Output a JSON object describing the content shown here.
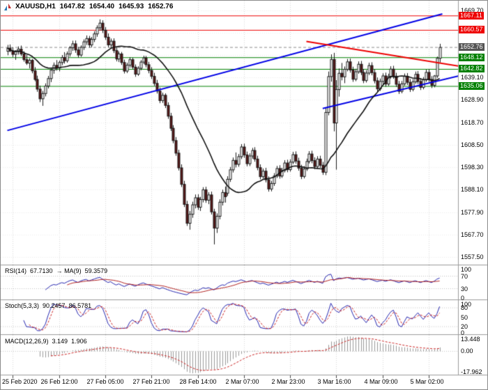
{
  "header": {
    "symbol": "XAUUSD,H1",
    "open": "1647.82",
    "high": "1654.40",
    "low": "1645.93",
    "close": "1652.76"
  },
  "panels": {
    "rsi": {
      "name": "RSI(14)",
      "value": "67.7130",
      "ma_name": "→ MA(9)",
      "ma_value": "59.3579"
    },
    "stoch": {
      "name": "Stoch(5,3,3)",
      "value": "90.2457",
      "signal": "86.5781"
    },
    "macd": {
      "name": "MACD(12,26,9)",
      "value": "3.149",
      "signal": "1.906"
    }
  },
  "colors": {
    "bull": "#ffffff",
    "bear": "#5a1616",
    "outline": "#1a1a1a",
    "ma": "#101010",
    "trend_blue": "#0000e6",
    "trend_red": "#ee0000",
    "level_red": "#ee0000",
    "level_green": "#008000",
    "bid_label": "#555555",
    "rsi": "#2626b0",
    "rsi_ma": "#b22222",
    "stoch_k": "#2626b0",
    "stoch_d": "#cc2222",
    "macd_hist": "#999999",
    "macd_signal": "#cc2222",
    "grid": "#d9d9d9"
  },
  "chart_data": {
    "type": "candlestick",
    "symbol": "XAUUSD",
    "timeframe": "H1",
    "ylim": [
      1554,
      1674
    ],
    "candles": [
      [
        1651.0,
        1653.9,
        1649.2,
        1652.4
      ],
      [
        1652.4,
        1654.1,
        1650.6,
        1651.2
      ],
      [
        1651.2,
        1652.8,
        1648.4,
        1649.6
      ],
      [
        1649.6,
        1651.5,
        1647.1,
        1650.8
      ],
      [
        1650.8,
        1653.2,
        1649.5,
        1652.0
      ],
      [
        1652.0,
        1653.6,
        1648.9,
        1649.8
      ],
      [
        1649.8,
        1651.0,
        1646.3,
        1647.2
      ],
      [
        1647.2,
        1649.4,
        1644.8,
        1645.6
      ],
      [
        1645.6,
        1647.8,
        1643.2,
        1646.9
      ],
      [
        1646.9,
        1647.5,
        1641.0,
        1642.1
      ],
      [
        1642.1,
        1643.8,
        1637.4,
        1638.2
      ],
      [
        1638.2,
        1639.9,
        1632.6,
        1633.8
      ],
      [
        1633.8,
        1635.4,
        1627.9,
        1629.4
      ],
      [
        1629.4,
        1633.0,
        1626.2,
        1631.8
      ],
      [
        1631.8,
        1636.4,
        1630.5,
        1635.2
      ],
      [
        1635.2,
        1639.8,
        1634.1,
        1638.6
      ],
      [
        1638.6,
        1643.2,
        1637.0,
        1642.4
      ],
      [
        1642.4,
        1645.9,
        1640.8,
        1644.6
      ],
      [
        1644.6,
        1647.0,
        1642.2,
        1643.4
      ],
      [
        1643.4,
        1646.8,
        1641.9,
        1645.9
      ],
      [
        1645.9,
        1649.3,
        1644.7,
        1648.2
      ],
      [
        1648.2,
        1650.6,
        1645.4,
        1646.7
      ],
      [
        1646.7,
        1650.9,
        1645.8,
        1649.8
      ],
      [
        1649.8,
        1653.4,
        1648.6,
        1652.6
      ],
      [
        1652.6,
        1655.8,
        1651.2,
        1654.4
      ],
      [
        1654.4,
        1655.9,
        1650.3,
        1651.6
      ],
      [
        1651.6,
        1653.0,
        1648.1,
        1649.3
      ],
      [
        1649.3,
        1653.7,
        1648.5,
        1652.8
      ],
      [
        1652.8,
        1656.4,
        1651.6,
        1655.3
      ],
      [
        1655.3,
        1658.2,
        1653.9,
        1656.8
      ],
      [
        1656.8,
        1658.0,
        1652.7,
        1653.9
      ],
      [
        1653.9,
        1657.5,
        1652.8,
        1656.4
      ],
      [
        1656.4,
        1660.1,
        1655.2,
        1658.9
      ],
      [
        1658.9,
        1662.8,
        1657.6,
        1661.7
      ],
      [
        1661.7,
        1665.5,
        1660.4,
        1663.8
      ],
      [
        1663.8,
        1665.1,
        1659.3,
        1660.6
      ],
      [
        1660.6,
        1662.0,
        1656.2,
        1657.4
      ],
      [
        1657.4,
        1659.1,
        1652.8,
        1653.9
      ],
      [
        1653.9,
        1656.8,
        1652.1,
        1655.6
      ],
      [
        1655.6,
        1656.9,
        1650.2,
        1651.3
      ],
      [
        1651.3,
        1652.8,
        1646.4,
        1647.5
      ],
      [
        1647.5,
        1650.9,
        1646.1,
        1649.8
      ],
      [
        1649.8,
        1650.7,
        1644.8,
        1645.9
      ],
      [
        1645.9,
        1647.2,
        1640.9,
        1642.0
      ],
      [
        1642.0,
        1645.8,
        1641.1,
        1644.7
      ],
      [
        1644.7,
        1648.3,
        1643.6,
        1647.2
      ],
      [
        1647.2,
        1648.1,
        1642.9,
        1643.8
      ],
      [
        1643.8,
        1645.0,
        1639.4,
        1640.6
      ],
      [
        1640.6,
        1644.2,
        1639.8,
        1643.3
      ],
      [
        1643.3,
        1647.0,
        1642.4,
        1646.1
      ],
      [
        1646.1,
        1649.0,
        1645.2,
        1648.0
      ],
      [
        1648.0,
        1648.9,
        1643.7,
        1644.9
      ],
      [
        1644.9,
        1646.2,
        1641.0,
        1642.3
      ],
      [
        1642.3,
        1643.8,
        1638.4,
        1639.6
      ],
      [
        1639.6,
        1641.2,
        1635.3,
        1636.4
      ],
      [
        1636.4,
        1638.0,
        1631.8,
        1632.9
      ],
      [
        1632.9,
        1634.5,
        1627.4,
        1628.6
      ],
      [
        1628.6,
        1632.2,
        1627.5,
        1631.0
      ],
      [
        1631.0,
        1631.9,
        1625.2,
        1626.4
      ],
      [
        1626.4,
        1627.8,
        1620.3,
        1621.5
      ],
      [
        1621.5,
        1623.0,
        1614.8,
        1616.0
      ],
      [
        1616.0,
        1617.4,
        1609.2,
        1610.4
      ],
      [
        1610.4,
        1612.0,
        1603.5,
        1604.7
      ],
      [
        1604.7,
        1606.2,
        1596.8,
        1598.0
      ],
      [
        1598.0,
        1599.6,
        1589.3,
        1590.5
      ],
      [
        1590.5,
        1592.1,
        1580.2,
        1581.4
      ],
      [
        1581.4,
        1583.0,
        1571.6,
        1572.8
      ],
      [
        1572.8,
        1578.4,
        1569.9,
        1576.9
      ],
      [
        1576.9,
        1582.6,
        1575.3,
        1581.2
      ],
      [
        1581.2,
        1585.9,
        1579.6,
        1584.4
      ],
      [
        1584.4,
        1586.0,
        1578.9,
        1580.1
      ],
      [
        1580.1,
        1584.8,
        1578.4,
        1583.6
      ],
      [
        1583.6,
        1589.2,
        1582.3,
        1588.0
      ],
      [
        1588.0,
        1589.4,
        1582.1,
        1583.3
      ],
      [
        1583.3,
        1586.9,
        1581.5,
        1585.7
      ],
      [
        1585.7,
        1587.2,
        1576.8,
        1578.0
      ],
      [
        1578.0,
        1579.4,
        1563.2,
        1570.6
      ],
      [
        1570.6,
        1577.3,
        1568.4,
        1576.0
      ],
      [
        1576.0,
        1583.7,
        1574.6,
        1582.4
      ],
      [
        1582.4,
        1588.1,
        1580.9,
        1586.8
      ],
      [
        1586.8,
        1589.5,
        1582.2,
        1584.9
      ],
      [
        1586.5,
        1594.2,
        1585.3,
        1592.8
      ],
      [
        1592.8,
        1598.4,
        1591.6,
        1597.1
      ],
      [
        1597.1,
        1602.7,
        1595.9,
        1601.4
      ],
      [
        1601.4,
        1605.0,
        1598.2,
        1599.6
      ],
      [
        1599.6,
        1604.3,
        1598.5,
        1603.1
      ],
      [
        1603.1,
        1608.8,
        1602.0,
        1607.5
      ],
      [
        1607.5,
        1609.0,
        1602.6,
        1603.9
      ],
      [
        1603.9,
        1605.4,
        1598.7,
        1599.9
      ],
      [
        1599.9,
        1604.6,
        1598.8,
        1603.4
      ],
      [
        1603.4,
        1607.1,
        1602.2,
        1605.9
      ],
      [
        1605.9,
        1607.4,
        1600.8,
        1602.0
      ],
      [
        1602.0,
        1603.5,
        1596.9,
        1598.1
      ],
      [
        1598.1,
        1599.6,
        1592.8,
        1594.0
      ],
      [
        1594.0,
        1597.7,
        1593.1,
        1596.5
      ],
      [
        1596.5,
        1598.0,
        1591.4,
        1592.6
      ],
      [
        1592.6,
        1594.1,
        1587.2,
        1588.4
      ],
      [
        1588.4,
        1592.1,
        1587.3,
        1590.9
      ],
      [
        1590.9,
        1595.6,
        1589.8,
        1594.3
      ],
      [
        1594.3,
        1598.9,
        1593.4,
        1597.7
      ],
      [
        1597.7,
        1599.2,
        1593.1,
        1594.3
      ],
      [
        1594.3,
        1598.0,
        1593.4,
        1596.8
      ],
      [
        1596.8,
        1601.5,
        1595.9,
        1600.2
      ],
      [
        1600.2,
        1601.7,
        1596.0,
        1597.2
      ],
      [
        1597.2,
        1601.9,
        1596.3,
        1600.6
      ],
      [
        1600.6,
        1605.3,
        1599.7,
        1604.0
      ],
      [
        1604.0,
        1605.5,
        1599.9,
        1601.1
      ],
      [
        1601.1,
        1602.6,
        1596.7,
        1597.9
      ],
      [
        1597.9,
        1599.4,
        1592.9,
        1594.1
      ],
      [
        1594.1,
        1598.8,
        1593.2,
        1597.5
      ],
      [
        1597.5,
        1602.2,
        1596.6,
        1600.9
      ],
      [
        1600.9,
        1605.6,
        1600.0,
        1604.3
      ],
      [
        1604.3,
        1605.8,
        1600.1,
        1601.3
      ],
      [
        1601.3,
        1602.8,
        1597.4,
        1598.6
      ],
      [
        1598.6,
        1603.3,
        1597.7,
        1602.0
      ],
      [
        1602.0,
        1603.5,
        1598.0,
        1599.2
      ],
      [
        1599.2,
        1600.7,
        1594.8,
        1596.0
      ],
      [
        1596.0,
        1625.4,
        1594.7,
        1623.2
      ],
      [
        1623.2,
        1641.8,
        1621.9,
        1639.5
      ],
      [
        1639.5,
        1649.6,
        1637.2,
        1647.3
      ],
      [
        1647.3,
        1650.3,
        1614.6,
        1618.4
      ],
      [
        1618.4,
        1637.9,
        1597.2,
        1633.6
      ],
      [
        1633.6,
        1643.2,
        1630.4,
        1641.0
      ],
      [
        1641.0,
        1645.7,
        1637.8,
        1639.4
      ],
      [
        1639.4,
        1644.1,
        1636.5,
        1642.8
      ],
      [
        1642.8,
        1647.5,
        1641.9,
        1646.2
      ],
      [
        1646.2,
        1647.7,
        1641.3,
        1642.5
      ],
      [
        1642.5,
        1644.0,
        1637.1,
        1638.3
      ],
      [
        1638.3,
        1643.0,
        1637.4,
        1641.7
      ],
      [
        1641.7,
        1646.4,
        1640.8,
        1645.1
      ],
      [
        1645.1,
        1646.6,
        1640.2,
        1641.4
      ],
      [
        1641.4,
        1642.9,
        1636.5,
        1637.7
      ],
      [
        1637.7,
        1642.4,
        1636.8,
        1641.1
      ],
      [
        1641.1,
        1645.8,
        1640.2,
        1644.5
      ],
      [
        1644.5,
        1646.0,
        1640.1,
        1641.3
      ],
      [
        1641.3,
        1642.8,
        1636.4,
        1637.6
      ],
      [
        1637.6,
        1639.1,
        1632.7,
        1633.9
      ],
      [
        1633.9,
        1638.6,
        1633.0,
        1637.3
      ],
      [
        1637.3,
        1641.0,
        1635.4,
        1639.8
      ],
      [
        1639.8,
        1641.3,
        1634.9,
        1636.1
      ],
      [
        1636.1,
        1640.8,
        1635.2,
        1639.5
      ],
      [
        1639.5,
        1644.2,
        1638.6,
        1642.9
      ],
      [
        1642.9,
        1644.4,
        1638.5,
        1639.7
      ],
      [
        1639.7,
        1641.2,
        1634.8,
        1636.0
      ],
      [
        1636.0,
        1637.5,
        1631.6,
        1632.8
      ],
      [
        1632.8,
        1637.5,
        1631.9,
        1636.2
      ],
      [
        1636.2,
        1640.9,
        1635.3,
        1639.6
      ],
      [
        1639.6,
        1641.1,
        1635.7,
        1636.9
      ],
      [
        1636.9,
        1638.4,
        1632.5,
        1633.7
      ],
      [
        1633.7,
        1638.4,
        1632.8,
        1637.1
      ],
      [
        1637.1,
        1641.8,
        1636.2,
        1640.5
      ],
      [
        1640.5,
        1642.0,
        1636.1,
        1637.3
      ],
      [
        1637.3,
        1638.8,
        1633.4,
        1634.6
      ],
      [
        1634.6,
        1639.3,
        1633.7,
        1638.0
      ],
      [
        1638.0,
        1642.7,
        1637.1,
        1641.4
      ],
      [
        1641.4,
        1642.9,
        1637.0,
        1638.2
      ],
      [
        1638.2,
        1639.7,
        1634.3,
        1635.5
      ],
      [
        1635.5,
        1640.2,
        1634.6,
        1639.8
      ],
      [
        1639.8,
        1648.6,
        1638.9,
        1647.8
      ],
      [
        1647.82,
        1654.4,
        1645.93,
        1652.76
      ]
    ],
    "overlays": {
      "ma_period": 24,
      "trendlines": [
        {
          "name": "ascending-channel-main",
          "color": "#0000e6",
          "width": 2,
          "from": [
            0,
            1615
          ],
          "to": [
            160,
            1668
          ]
        },
        {
          "name": "ascending-support",
          "color": "#0000e6",
          "width": 2,
          "from": [
            116,
            1625
          ],
          "to": [
            170,
            1641
          ]
        },
        {
          "name": "descending-resistance",
          "color": "#ee0000",
          "width": 2,
          "from": [
            110,
            1655.5
          ],
          "to": [
            170,
            1643.5
          ]
        }
      ],
      "h_lines": [
        {
          "value": 1667.11,
          "color": "#ee0000",
          "type": "resistance"
        },
        {
          "value": 1660.57,
          "color": "#ee0000",
          "type": "resistance"
        },
        {
          "value": 1648.12,
          "color": "#008000",
          "type": "support"
        },
        {
          "value": 1642.82,
          "color": "#008000",
          "type": "support"
        },
        {
          "value": 1635.06,
          "color": "#008000",
          "type": "support"
        }
      ],
      "bid": 1652.76
    },
    "indicators": [
      {
        "type": "RSI",
        "period": 14,
        "applied_ma": 9,
        "current": 67.713,
        "ma_current": 59.3579,
        "range": [
          0,
          100
        ],
        "ref_levels": [
          70,
          30
        ],
        "axis_labels": [
          "100",
          "70",
          "30",
          "0"
        ],
        "axis_values": [
          100,
          70,
          30,
          0
        ]
      },
      {
        "type": "Stochastic",
        "k": 5,
        "d": 3,
        "slowing": 3,
        "current": 90.2457,
        "signal_current": 86.5781,
        "range": [
          0,
          100
        ],
        "ref_levels": [
          80,
          20
        ],
        "axis_labels": [
          "100",
          "80",
          "50",
          "20",
          "0"
        ],
        "axis_values": [
          100,
          80,
          50,
          20,
          0
        ]
      },
      {
        "type": "MACD",
        "fast": 12,
        "slow": 26,
        "signal": 9,
        "current": 3.149,
        "signal_current": 1.906,
        "axis_labels": [
          "13.448",
          "0.00",
          "-17.962"
        ]
      }
    ],
    "price_axis": {
      "grid_values": [
        1557.5,
        1567.7,
        1577.9,
        1588.1,
        1598.3,
        1608.5,
        1618.7,
        1628.9,
        1639.1,
        1649.3,
        1659.5,
        1669.7
      ],
      "ticks": [
        {
          "text": "1669.70",
          "value": 1669.7
        },
        {
          "text": "1639.10",
          "value": 1639.1
        },
        {
          "text": "1628.90",
          "value": 1628.9
        },
        {
          "text": "1618.70",
          "value": 1618.7
        },
        {
          "text": "1608.50",
          "value": 1608.5
        },
        {
          "text": "1598.30",
          "value": 1598.3
        },
        {
          "text": "1588.10",
          "value": 1588.1
        },
        {
          "text": "1577.90",
          "value": 1577.9
        },
        {
          "text": "1567.70",
          "value": 1567.7
        },
        {
          "text": "1557.50",
          "value": 1557.5
        }
      ],
      "levels": [
        {
          "text": "1667.11",
          "value": 1667.11,
          "bg": "#ee0000"
        },
        {
          "text": "1660.57",
          "value": 1660.57,
          "bg": "#ee0000"
        },
        {
          "text": "1652.76",
          "value": 1652.76,
          "bg": "#555555"
        },
        {
          "text": "1648.12",
          "value": 1648.12,
          "bg": "#008000"
        },
        {
          "text": "1642.82",
          "value": 1642.82,
          "bg": "#008000"
        },
        {
          "text": "1635.06",
          "value": 1635.06,
          "bg": "#008000"
        }
      ]
    },
    "time_axis": {
      "labels": [
        "25 Feb 2020",
        "26 Feb 12:00",
        "27 Feb 05:00",
        "27 Feb 21:00",
        "28 Feb 14:00",
        "2 Mar 07:00",
        "2 Mar 23:00",
        "3 Mar 16:00",
        "4 Mar 09:00",
        "5 Mar 02:00"
      ],
      "label_bars": [
        2,
        19,
        36,
        53,
        70,
        87,
        104,
        121,
        138,
        155
      ]
    }
  }
}
